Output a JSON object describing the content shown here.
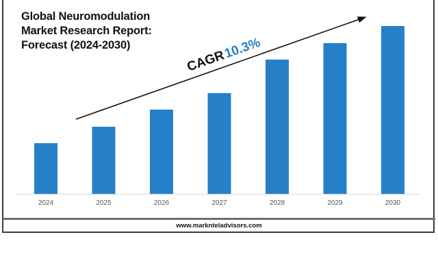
{
  "chart_data": {
    "type": "bar",
    "title": "Global Neuromodulation Market Research Report: Forecast (2024-2030)",
    "title_lines": [
      "Global Neuromodulation",
      "Market Research Report:",
      "Forecast (2024-2030)"
    ],
    "categories": [
      "2024",
      "2025",
      "2026",
      "2027",
      "2028",
      "2029",
      "2030"
    ],
    "values": [
      74,
      98,
      123,
      147,
      196,
      220,
      245
    ],
    "value_note": "relative bar heights; no value axis shown",
    "xlabel": "",
    "ylabel": "",
    "ylim": [
      0,
      250
    ],
    "grid": false,
    "legend": "none",
    "bar_color": "#2680c8",
    "annotation": {
      "label": "CAGR",
      "value": "10.3%",
      "label_color": "#111111",
      "value_color": "#2680c8",
      "arrow": "trend-up"
    }
  },
  "footer": {
    "url": "www.marknteladvisors.com"
  }
}
